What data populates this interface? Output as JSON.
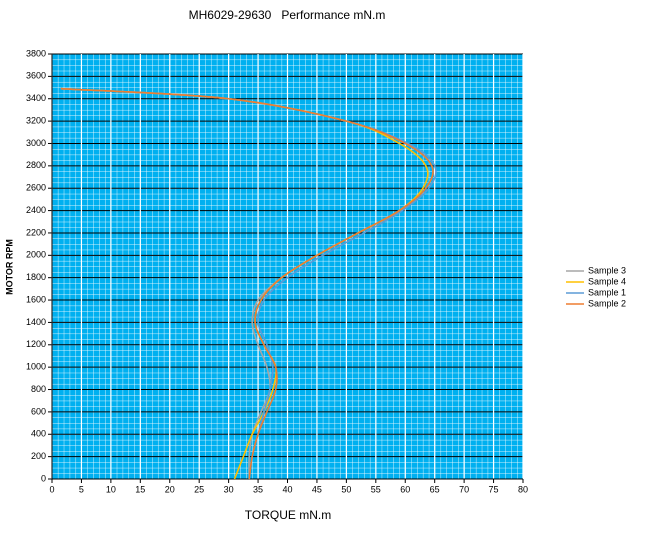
{
  "chart_data": {
    "type": "line",
    "title": "MH6029-29630   Performance mN.m",
    "x_label": "TORQUE mN.m",
    "y_label": "MOTOR RPM",
    "y": [
      0,
      200,
      400,
      600,
      800,
      1000,
      1200,
      1400,
      1600,
      1800,
      2000,
      2200,
      2400,
      2600,
      2800,
      3000,
      3200,
      3400,
      3490
    ],
    "series": [
      {
        "name": "Sample 3",
        "color": "#a6a6a6",
        "values": [
          33.5,
          33.5,
          34,
          35.5,
          37,
          36.5,
          35,
          34,
          35,
          39,
          45,
          52,
          59,
          63.5,
          64.5,
          60,
          50,
          30,
          1.5
        ]
      },
      {
        "name": "Sample 4",
        "color": "#ffc000",
        "values": [
          31,
          32.5,
          34,
          36,
          37.5,
          38,
          36,
          34.5,
          35.5,
          39,
          45,
          52,
          59,
          63,
          63.5,
          59,
          50,
          30,
          1.5
        ]
      },
      {
        "name": "Sample 1",
        "color": "#5b9bd5",
        "values": [
          33.5,
          34,
          35,
          36,
          37,
          37.5,
          36.5,
          35,
          36,
          40,
          46,
          53,
          59.5,
          64,
          65,
          60.5,
          50,
          30,
          1.5
        ]
      },
      {
        "name": "Sample 2",
        "color": "#ed7d31",
        "values": [
          33.5,
          34,
          35,
          36.5,
          38,
          38,
          36,
          34.5,
          35.5,
          39,
          45,
          52,
          59,
          63.5,
          64.5,
          60,
          50,
          30,
          1.5
        ]
      }
    ],
    "xlim": [
      0,
      80
    ],
    "xticks": [
      0,
      5,
      10,
      15,
      20,
      25,
      30,
      35,
      40,
      45,
      50,
      55,
      60,
      65,
      70,
      75,
      80
    ],
    "ylim": [
      0,
      3800
    ],
    "yticks": [
      0,
      200,
      400,
      600,
      800,
      1000,
      1200,
      1400,
      1600,
      1800,
      2000,
      2200,
      2400,
      2600,
      2800,
      3000,
      3200,
      3400,
      3600,
      3800
    ],
    "grid": true,
    "plot_background": "#00b0f0",
    "legend": "right"
  }
}
